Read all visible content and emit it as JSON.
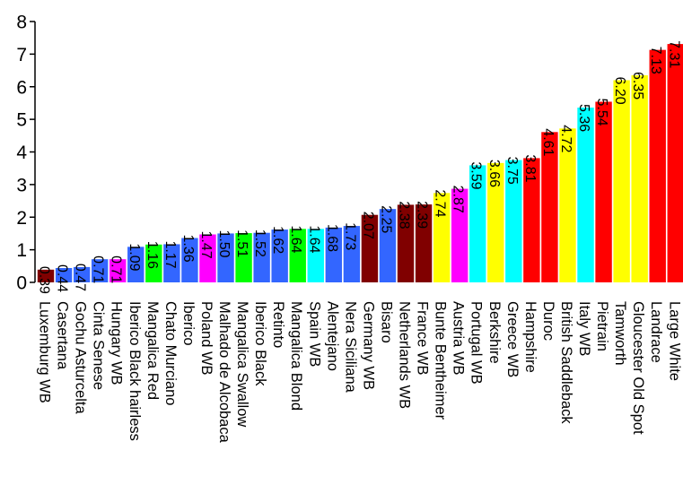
{
  "chart_data": {
    "type": "bar",
    "title": "",
    "xlabel": "",
    "ylabel": "",
    "ylim": [
      0,
      8
    ],
    "yticks": [
      0,
      1,
      2,
      3,
      4,
      5,
      6,
      7,
      8
    ],
    "grid": false,
    "legend": "none",
    "categories": [
      "Luxemburg WB",
      "Casertana",
      "Gochu Asturcelta",
      "Cinta Senese",
      "Hungary WB",
      "Iberico Black hairless",
      "Mangalica Red",
      "Chato Murciano",
      "Iberico",
      "Poland WB",
      "Malhado de Alcobaca",
      "Mangalica Swallow",
      "Iberico Black",
      "Retinto",
      "Mangalica Blond",
      "Spain WB",
      "Alentejano",
      "Nera Siciliana",
      "Germany WB",
      "Bisaro",
      "Netherlands WB",
      "France WB",
      "Bunte Bentheimer",
      "Austria WB",
      "Portugal WB",
      "Berkshire",
      "Greece WB",
      "Hampshire",
      "Duroc",
      "British Saddleback",
      "Italy WB",
      "Pietrain",
      "Tamworth",
      "Gloucester Old Spot",
      "Landrace",
      "Large White"
    ],
    "values": [
      0.39,
      0.44,
      0.47,
      0.71,
      0.71,
      1.09,
      1.16,
      1.17,
      1.36,
      1.47,
      1.5,
      1.51,
      1.52,
      1.62,
      1.64,
      1.64,
      1.68,
      1.73,
      2.07,
      2.25,
      2.38,
      2.39,
      2.74,
      2.87,
      3.59,
      3.66,
      3.75,
      3.81,
      4.61,
      4.72,
      5.36,
      5.54,
      6.2,
      6.35,
      7.13,
      7.31
    ],
    "value_labels": [
      "0.39",
      "0.44",
      "0.47",
      "0.71",
      "0.71",
      "1.09",
      "1.16",
      "1.17",
      "1.36",
      "1.47",
      "1.50",
      "1.51",
      "1.52",
      "1.62",
      "1.64",
      "1.64",
      "1.68",
      "1.73",
      "2.07",
      "2.25",
      "2.38",
      "2.39",
      "2.74",
      "2.87",
      "3.59",
      "3.66",
      "3.75",
      "3.81",
      "4.61",
      "4.72",
      "5.36",
      "5.54",
      "6.20",
      "6.35",
      "7.13",
      "7.31"
    ],
    "colors": [
      "#800000",
      "#3366ff",
      "#3366ff",
      "#3366ff",
      "#ff00ff",
      "#3366ff",
      "#00ff00",
      "#3366ff",
      "#3366ff",
      "#ff00ff",
      "#3366ff",
      "#00ff00",
      "#3366ff",
      "#3366ff",
      "#00ff00",
      "#00ffff",
      "#3366ff",
      "#3366ff",
      "#800000",
      "#3366ff",
      "#800000",
      "#800000",
      "#ffff00",
      "#ff00ff",
      "#00ffff",
      "#ffff00",
      "#00ffff",
      "#ff0000",
      "#ff0000",
      "#ffff00",
      "#00ffff",
      "#ff0000",
      "#ffff00",
      "#ffff00",
      "#ff0000",
      "#ff0000"
    ]
  }
}
